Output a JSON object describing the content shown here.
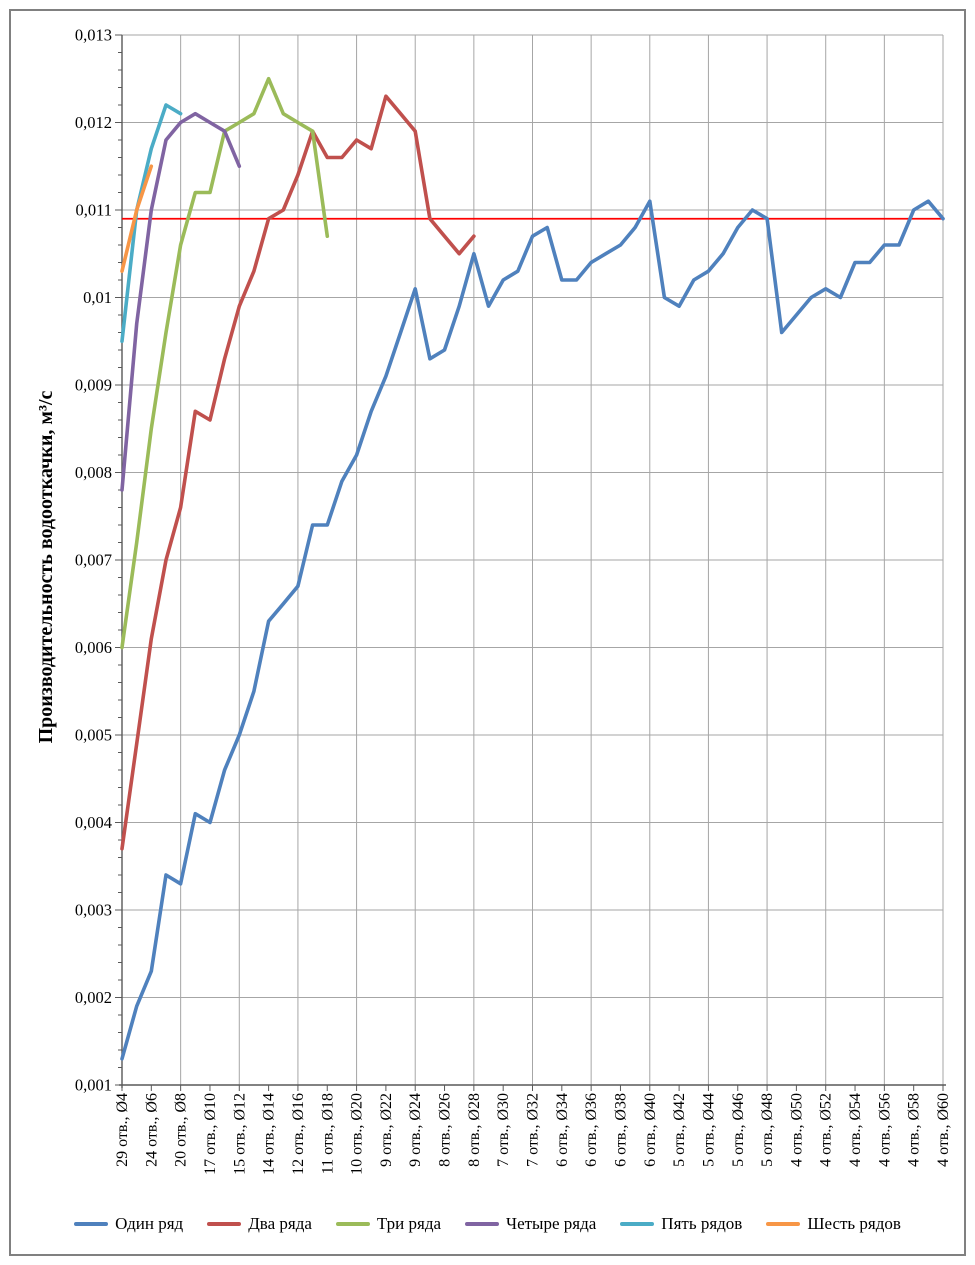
{
  "frame": {
    "border_color": "#808080",
    "background": "#FFFFFF"
  },
  "chart_data": {
    "type": "line",
    "title": "",
    "ylabel": "Производительность водооткачки, м³/с",
    "xlabel": "",
    "ylim": [
      0.001,
      0.013
    ],
    "ytick_step": 0.001,
    "y_minor_tick_step": 0.0002,
    "decimal_separator": ",",
    "grid": {
      "horizontal": true,
      "vertical": true,
      "color": "#A6A6A6"
    },
    "axis_color": "#595959",
    "text_color": "#000000",
    "legend_position": "bottom",
    "x": {
      "diameter_start": 4,
      "diameter_step": 1,
      "points_total": 57,
      "label_every_n_points": 2,
      "gridline_every_n_labels": 2,
      "tick_labels": [
        "29 отв., Ø4",
        "24 отв., Ø6",
        "20 отв., Ø8",
        "17 отв., Ø10",
        "15 отв., Ø12",
        "14 отв., Ø14",
        "12 отв., Ø16",
        "11 отв., Ø18",
        "10 отв., Ø20",
        "9 отв., Ø22",
        "9 отв., Ø24",
        "8 отв., Ø26",
        "8 отв., Ø28",
        "7 отв., Ø30",
        "7 отв., Ø32",
        "6 отв., Ø34",
        "6 отв., Ø36",
        "6 отв., Ø38",
        "6 отв., Ø40",
        "5 отв., Ø42",
        "5 отв., Ø44",
        "5 отв., Ø46",
        "5 отв., Ø48",
        "4 отв., Ø50",
        "4 отв., Ø52",
        "4 отв., Ø54",
        "4 отв., Ø56",
        "4 отв., Ø58",
        "4 отв., Ø60"
      ]
    },
    "reference_line": {
      "value": 0.0109,
      "color": "#FF0000"
    },
    "series": [
      {
        "name": "Один ряд",
        "color": "#4F81BD",
        "start_diameter": 4,
        "values": [
          0.0013,
          0.0019,
          0.0023,
          0.0034,
          0.0033,
          0.0041,
          0.004,
          0.0046,
          0.005,
          0.0055,
          0.0063,
          0.0065,
          0.0067,
          0.0074,
          0.0074,
          0.0079,
          0.0082,
          0.0087,
          0.0091,
          0.0096,
          0.0101,
          0.0093,
          0.0094,
          0.0099,
          0.0105,
          0.0099,
          0.0102,
          0.0103,
          0.0107,
          0.0108,
          0.0102,
          0.0102,
          0.0104,
          0.0105,
          0.0106,
          0.0108,
          0.0111,
          0.01,
          0.0099,
          0.0102,
          0.0103,
          0.0105,
          0.0108,
          0.011,
          0.0109,
          0.0096,
          0.0098,
          0.01,
          0.0101,
          0.01,
          0.0104,
          0.0104,
          0.0106,
          0.0106,
          0.011,
          0.0111,
          0.0109
        ]
      },
      {
        "name": "Два ряда",
        "color": "#C0504D",
        "start_diameter": 4,
        "values": [
          0.0037,
          0.0049,
          0.0061,
          0.007,
          0.0076,
          0.0087,
          0.0086,
          0.0093,
          0.0099,
          0.0103,
          0.0109,
          0.011,
          0.0114,
          0.0119,
          0.0116,
          0.0116,
          0.0118,
          0.0117,
          0.0123,
          0.0121,
          0.0119,
          0.0109,
          0.0107,
          0.0105,
          0.0107
        ]
      },
      {
        "name": "Три ряда",
        "color": "#9BBB59",
        "start_diameter": 4,
        "values": [
          0.006,
          0.0072,
          0.0085,
          0.0096,
          0.0106,
          0.0112,
          0.0112,
          0.0119,
          0.012,
          0.0121,
          0.0125,
          0.0121,
          0.012,
          0.0119,
          0.0107
        ]
      },
      {
        "name": "Четыре ряда",
        "color": "#8064A2",
        "start_diameter": 4,
        "values": [
          0.0078,
          0.0097,
          0.011,
          0.0118,
          0.012,
          0.0121,
          0.012,
          0.0119,
          0.0115
        ]
      },
      {
        "name": "Пять рядов",
        "color": "#4BACC6",
        "start_diameter": 4,
        "values": [
          0.0095,
          0.011,
          0.0117,
          0.0122,
          0.0121
        ]
      },
      {
        "name": "Шесть рядов",
        "color": "#F79646",
        "start_diameter": 4,
        "values": [
          0.0103,
          0.011,
          0.0115
        ]
      }
    ]
  }
}
